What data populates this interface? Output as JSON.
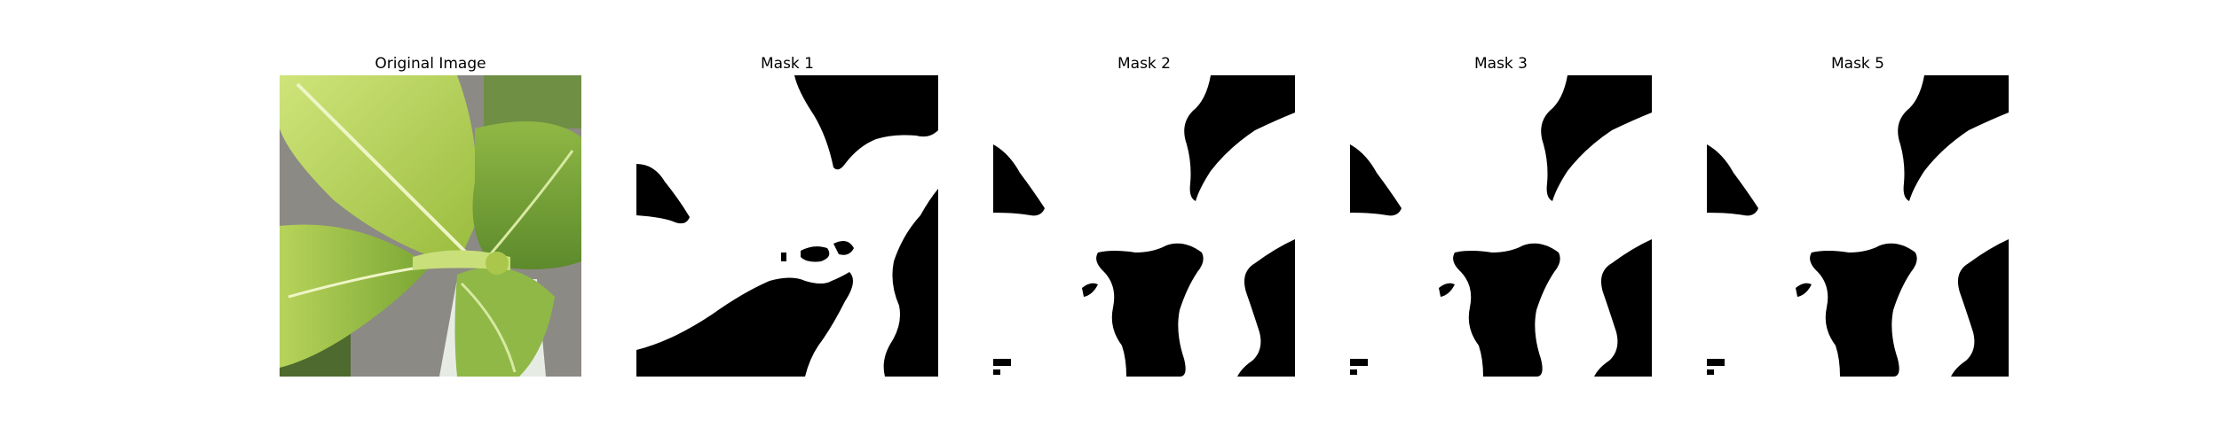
{
  "figure": {
    "panels": [
      {
        "title": "Original Image",
        "kind": "photo",
        "subject": "leafy-green-plant-photo"
      },
      {
        "title": "Mask 1",
        "kind": "binary-mask"
      },
      {
        "title": "Mask 2",
        "kind": "binary-mask"
      },
      {
        "title": "Mask 3",
        "kind": "binary-mask"
      },
      {
        "title": "Mask 5",
        "kind": "binary-mask"
      }
    ],
    "colors": {
      "mask_foreground": "#ffffff",
      "mask_background": "#000000",
      "leaf_light": "#c4dd6a",
      "leaf_mid": "#a9c94a",
      "leaf_dark": "#5f8a2a",
      "soil": "#8f8a83"
    }
  }
}
